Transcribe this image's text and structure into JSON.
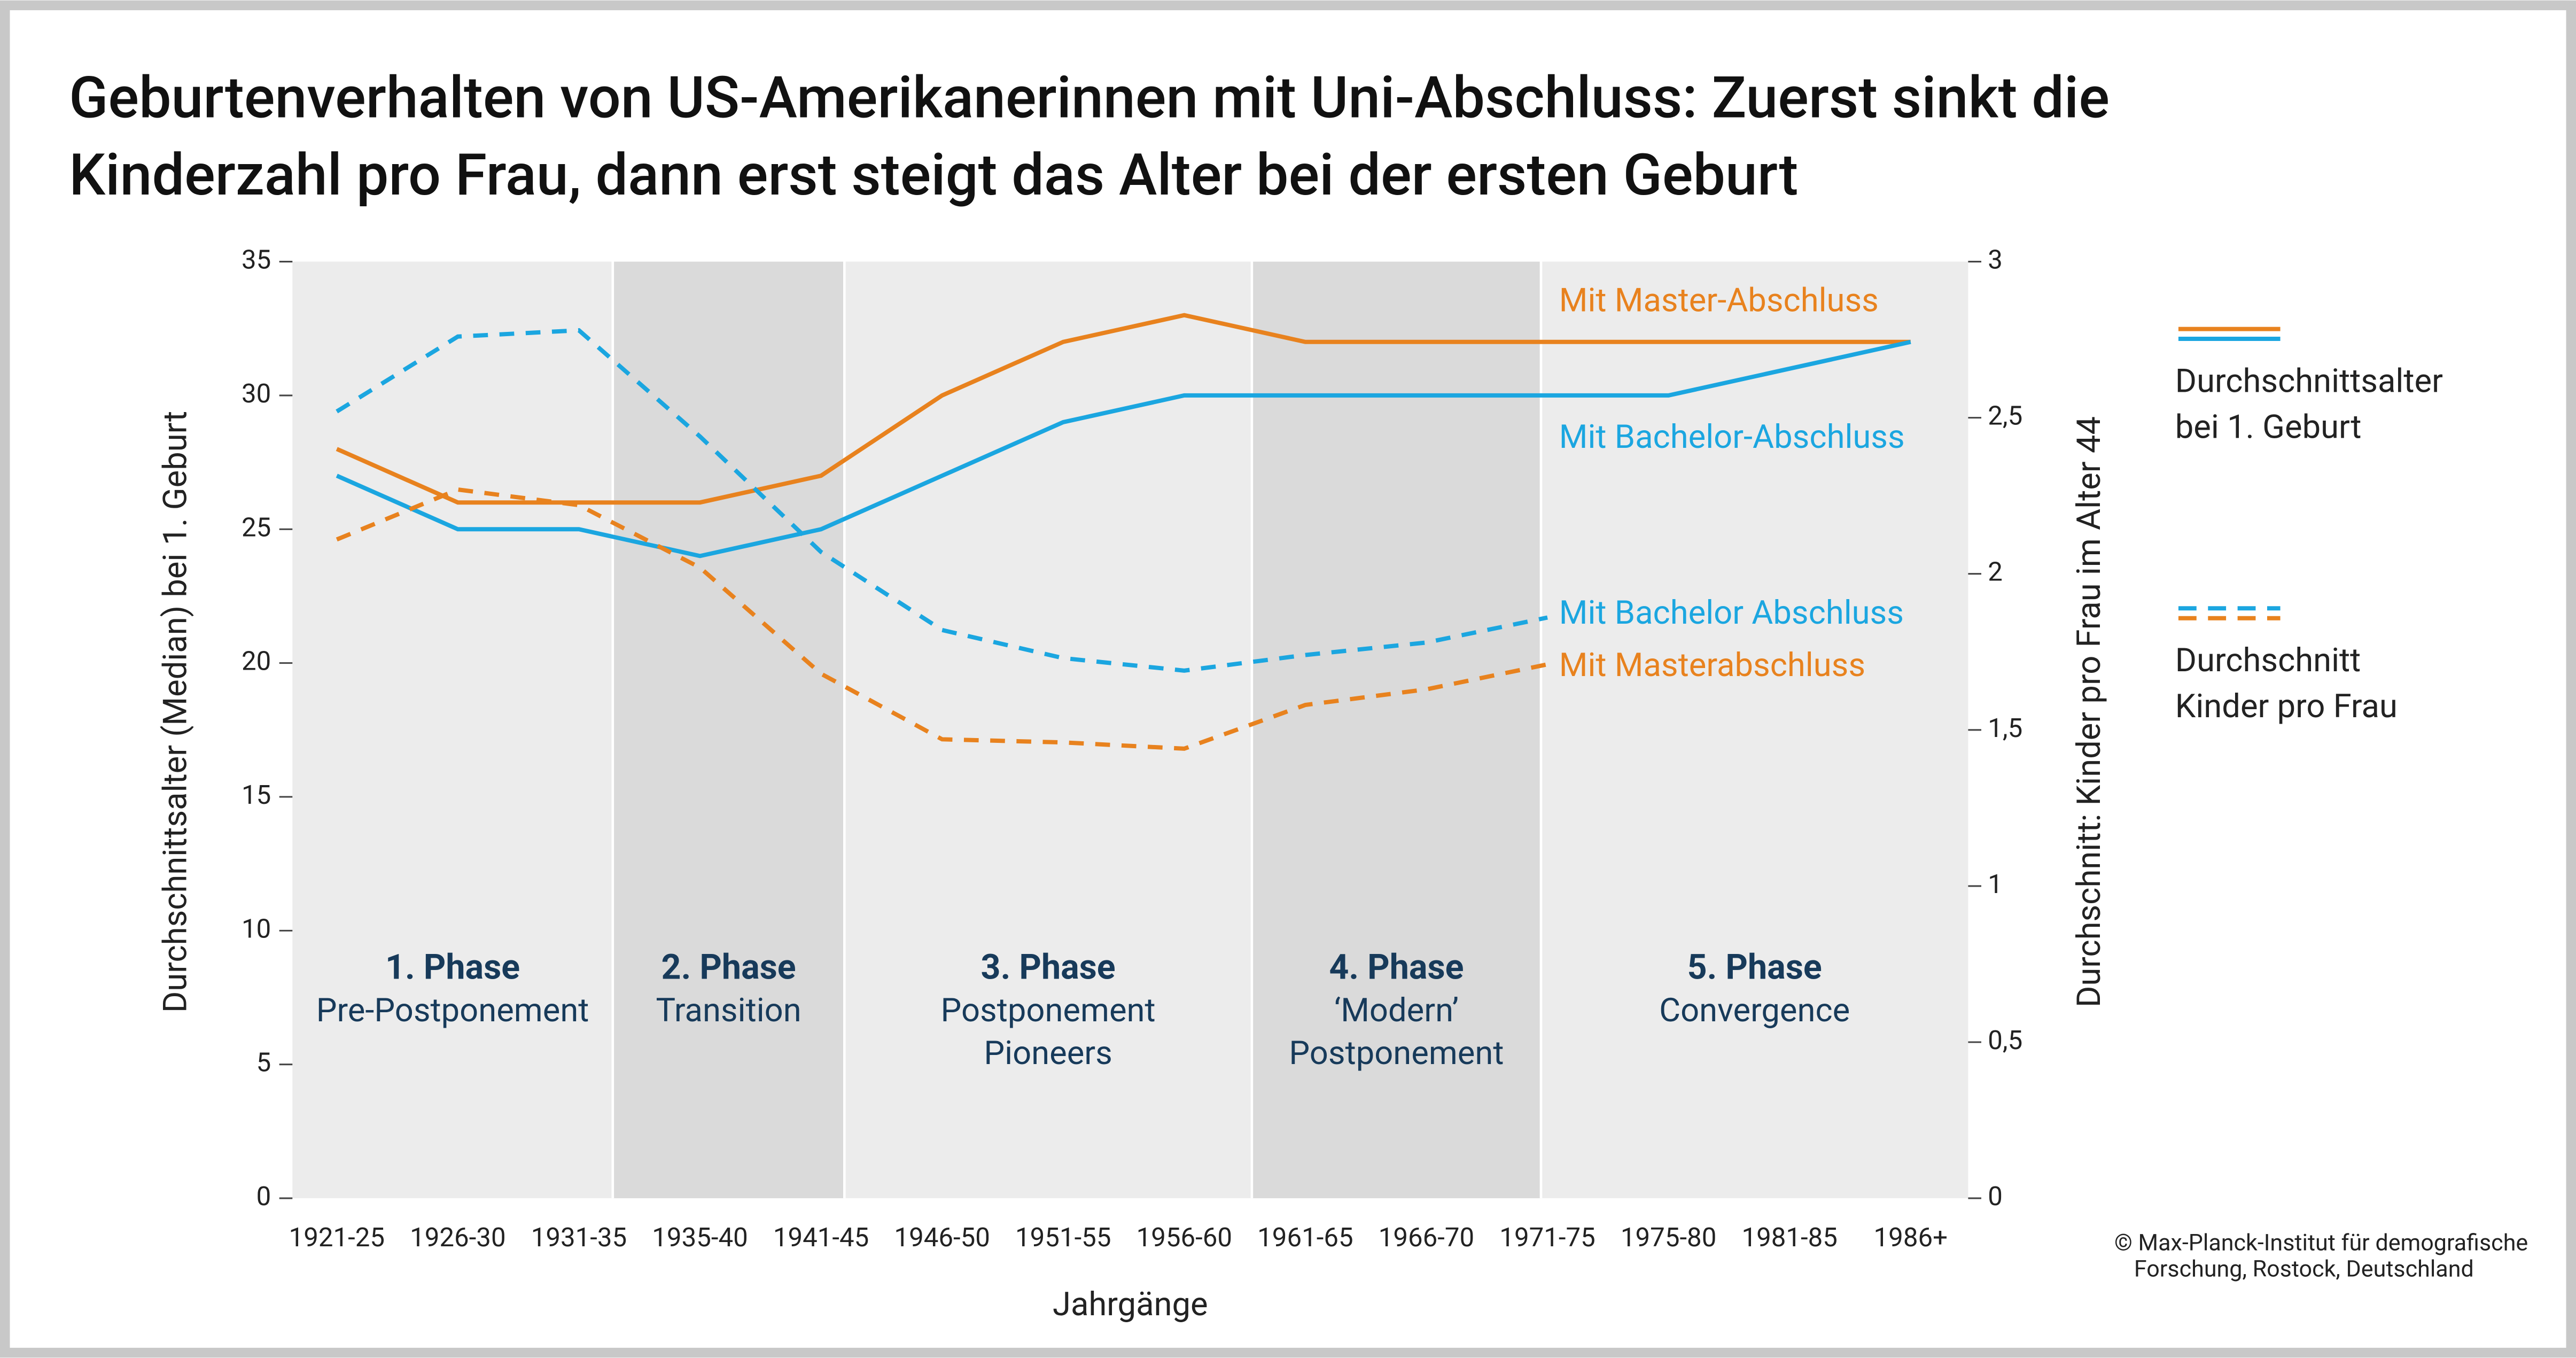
{
  "chart_data": {
    "type": "line",
    "title": [
      "Geburtenverhalten von US-Amerikanerinnen mit Uni-Abschluss: Zuerst sinkt die",
      "Kinderzahl pro Frau, dann erst steigt das Alter bei der ersten Geburt"
    ],
    "x_label": "Jahrgänge",
    "y_label": "Durchschnittsalter (Median) bei 1. Geburt",
    "y2_label": "Durchschnitt: Kinder pro Frau im Alter 44",
    "categories": [
      "1921-25",
      "1926-30",
      "1931-35",
      "1935-40",
      "1941-45",
      "1946-50",
      "1951-55",
      "1956-60",
      "1961-65",
      "1966-70",
      "1971-75",
      "1975-80",
      "1981-85",
      "1986+"
    ],
    "ylim": [
      0,
      35
    ],
    "yticks": [
      0,
      5,
      10,
      15,
      20,
      25,
      30,
      35
    ],
    "y2lim": [
      0,
      3
    ],
    "y2ticks": [
      0,
      {
        "value": 0.5,
        "label": "0,5"
      },
      1,
      {
        "value": 1.5,
        "label": "1,5"
      },
      2,
      {
        "value": 2.5,
        "label": "2,5"
      },
      3
    ],
    "series": [
      {
        "name": "Mit Master-Abschluss",
        "color": "#e8821e",
        "dash": false,
        "values": [
          28,
          26,
          26,
          26,
          27,
          30,
          32,
          33,
          32,
          32,
          32,
          32,
          32,
          32
        ]
      },
      {
        "name": "Mit Bachelor-Abschluss",
        "color": "#1ba6e0",
        "dash": false,
        "values": [
          27,
          25,
          25,
          24,
          25,
          27,
          29,
          30,
          30,
          30,
          30,
          30,
          31,
          32
        ]
      },
      {
        "name": "Mit Bachelor Abschluss",
        "color": "#1ba6e0",
        "dash": true,
        "axis": "y2",
        "values": [
          2.52,
          2.76,
          2.78,
          2.44,
          2.07,
          1.82,
          1.73,
          1.69,
          1.74,
          1.78,
          1.86,
          null,
          null,
          null
        ]
      },
      {
        "name": "Mit Masterabschluss",
        "color": "#e8821e",
        "dash": true,
        "axis": "y2",
        "values": [
          2.11,
          2.27,
          2.22,
          2.02,
          1.68,
          1.47,
          1.46,
          1.44,
          1.58,
          1.63,
          1.71,
          null,
          null,
          null
        ]
      }
    ],
    "phases": [
      {
        "title": "1. Phase",
        "label": [
          "Pre-Postponement"
        ]
      },
      {
        "title": "2. Phase",
        "label": [
          "Transition"
        ]
      },
      {
        "title": "3. Phase",
        "label": [
          "Postponement",
          "Pioneers"
        ]
      },
      {
        "title": "4. Phase",
        "label": [
          "‘Modern’",
          "Postponement"
        ]
      },
      {
        "title": "5. Phase",
        "label": [
          "Convergence"
        ]
      }
    ],
    "legend": [
      {
        "label": [
          "Durchschnittsalter",
          "bei 1. Geburt"
        ]
      },
      {
        "label": [
          "Durchschnitt",
          "Kinder pro Frau"
        ]
      }
    ],
    "source": [
      "© Max-Planck-Institut für demografische",
      "Forschung, Rostock, Deutschland"
    ]
  }
}
